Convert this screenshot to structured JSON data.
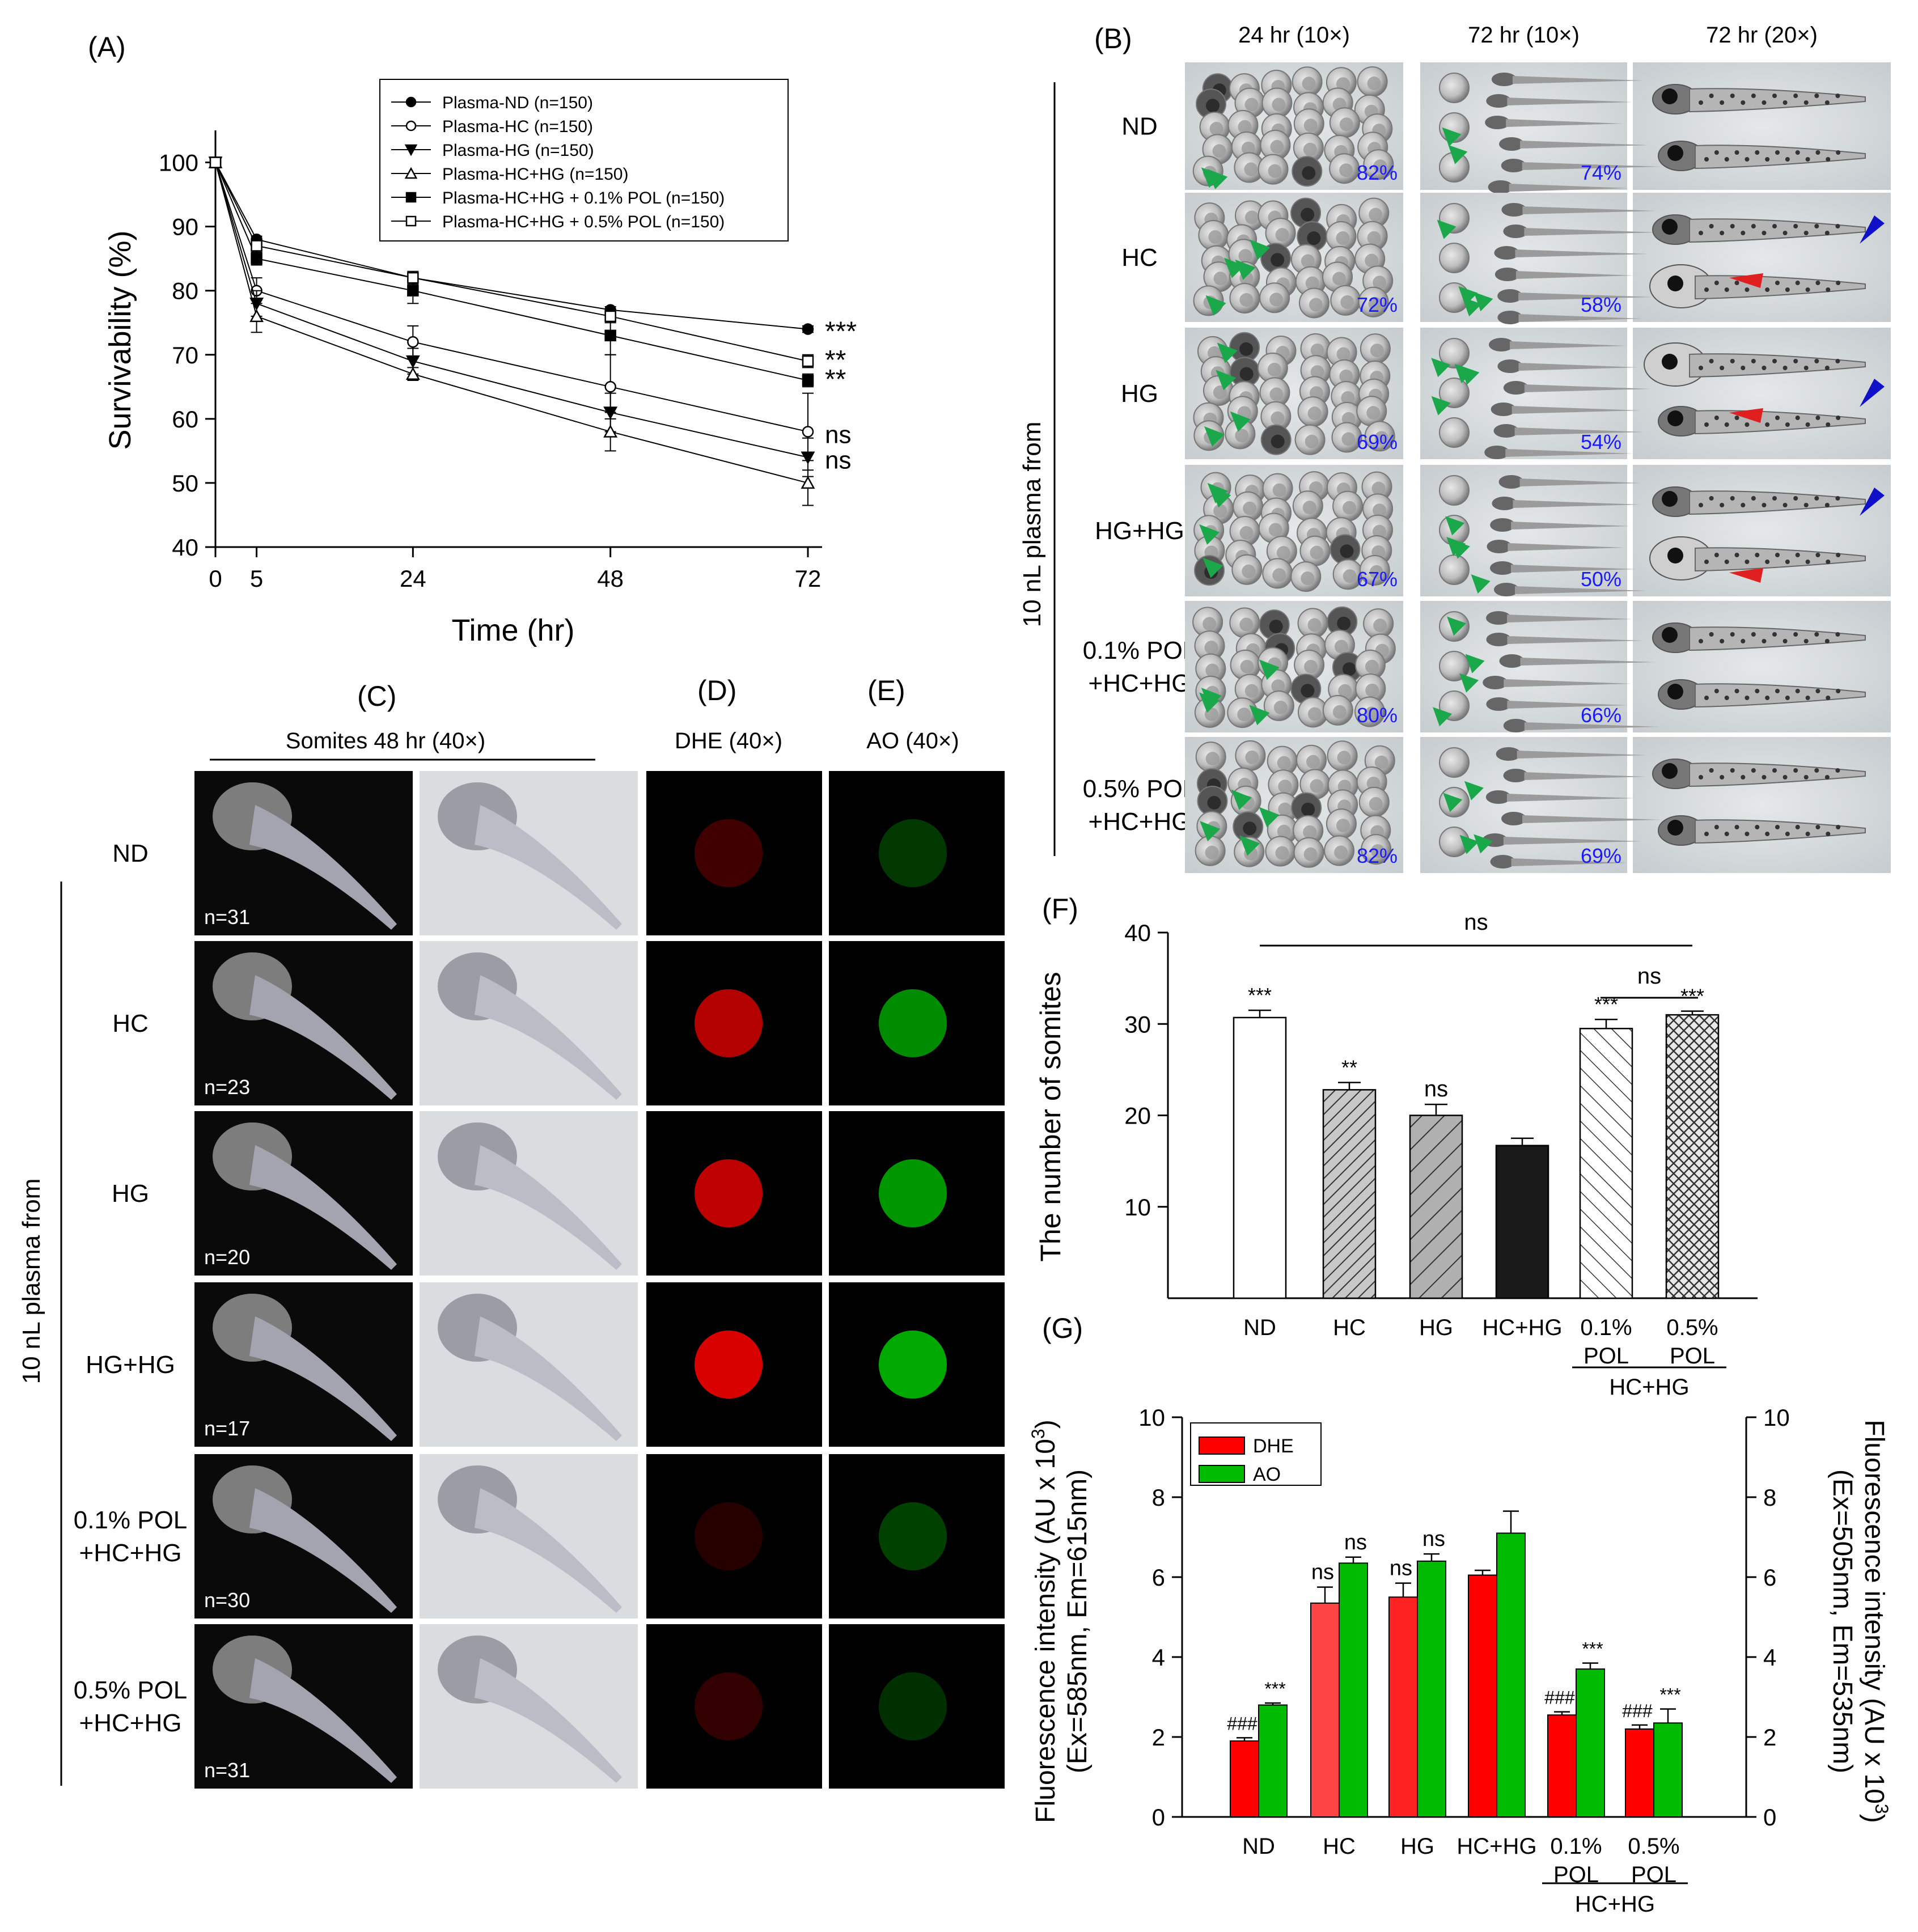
{
  "panels": {
    "A": "(A)",
    "B": "(B)",
    "C": "(C)",
    "D": "(D)",
    "E": "(E)",
    "F": "(F)",
    "G": "(G)"
  },
  "side_labels": {
    "b_group": "10 nL plasma from",
    "c_group": "10 nL plasma from"
  },
  "image_panel_B": {
    "columns": [
      "24 hr (10×)",
      "72 hr (10×)",
      "72 hr (20×)"
    ],
    "rows": [
      {
        "label_lines": [
          "ND"
        ],
        "pct24": "82%",
        "pct72": "74%"
      },
      {
        "label_lines": [
          "HC"
        ],
        "pct24": "72%",
        "pct72": "58%"
      },
      {
        "label_lines": [
          "HG"
        ],
        "pct24": "69%",
        "pct72": "54%"
      },
      {
        "label_lines": [
          "HG+HG"
        ],
        "pct24": "67%",
        "pct72": "50%"
      },
      {
        "label_lines": [
          "0.1% POL",
          "+HC+HG"
        ],
        "pct24": "80%",
        "pct72": "66%"
      },
      {
        "label_lines": [
          "0.5% POL",
          "+HC+HG"
        ],
        "pct24": "82%",
        "pct72": "69%"
      }
    ]
  },
  "image_panel_CDE": {
    "header_C": "Somites 48 hr (40×)",
    "header_D": "DHE (40×)",
    "header_E": "AO (40×)",
    "rows": [
      {
        "label_lines": [
          "ND"
        ],
        "n": "n=31",
        "dhe": 0.25,
        "ao": 0.3
      },
      {
        "label_lines": [
          "HC"
        ],
        "n": "n=23",
        "dhe": 0.7,
        "ao": 0.75
      },
      {
        "label_lines": [
          "HG"
        ],
        "n": "n=20",
        "dhe": 0.75,
        "ao": 0.8
      },
      {
        "label_lines": [
          "HG+HG"
        ],
        "n": "n=17",
        "dhe": 0.85,
        "ao": 0.9
      },
      {
        "label_lines": [
          "0.1% POL",
          "+HC+HG"
        ],
        "n": "n=30",
        "dhe": 0.15,
        "ao": 0.35
      },
      {
        "label_lines": [
          "0.5% POL",
          "+HC+HG"
        ],
        "n": "n=31",
        "dhe": 0.2,
        "ao": 0.25
      }
    ]
  },
  "colors": {
    "green_arrow": "#1aa84a",
    "blue_arrow": "#1010c8",
    "red_arrow": "#e02020",
    "pct_text": "#1a1aff",
    "dhe": "#ff0000",
    "ao": "#00bb00"
  },
  "chart_data": [
    {
      "id": "A",
      "type": "line",
      "xlabel": "Time (hr)",
      "ylabel": "Survivability (%)",
      "x": [
        0,
        5,
        24,
        48,
        72
      ],
      "xticks": [
        0,
        5,
        24,
        48,
        72
      ],
      "xlim": [
        0,
        72
      ],
      "ylim": [
        40,
        105
      ],
      "yticks": [
        40,
        50,
        60,
        70,
        80,
        90,
        100
      ],
      "legend_position": "top-right",
      "series": [
        {
          "name": "Plasma-ND (n=150)",
          "marker": "circle-filled",
          "values": [
            100,
            88,
            82,
            77,
            74
          ],
          "err": [
            0,
            0.5,
            0.5,
            0.5,
            0.5
          ],
          "sig": "***"
        },
        {
          "name": "Plasma-HC  (n=150)",
          "marker": "circle-open",
          "values": [
            100,
            80,
            72,
            65,
            58
          ],
          "err": [
            0,
            2,
            2.5,
            5,
            6
          ],
          "sig": "ns"
        },
        {
          "name": "Plasma-HG (n=150)",
          "marker": "triangle-down-filled",
          "values": [
            100,
            78,
            69,
            61,
            54
          ],
          "err": [
            0,
            2,
            2,
            3,
            3
          ],
          "sig": "ns"
        },
        {
          "name": "Plasma-HC+HG (n=150)",
          "marker": "triangle-up-open",
          "values": [
            100,
            76,
            67,
            58,
            50
          ],
          "err": [
            0,
            2.5,
            1,
            3,
            3.5
          ],
          "sig": ""
        },
        {
          "name": "Plasma-HC+HG + 0.1% POL (n=150)",
          "marker": "square-filled",
          "values": [
            100,
            85,
            80,
            73,
            66
          ],
          "err": [
            0,
            1,
            2,
            3,
            1
          ],
          "sig": "**"
        },
        {
          "name": "Plasma-HC+HG + 0.5% POL (n=150)",
          "marker": "square-open",
          "values": [
            100,
            87,
            82,
            76,
            69
          ],
          "err": [
            0,
            1,
            1,
            1,
            1
          ],
          "sig": "**"
        }
      ]
    },
    {
      "id": "F",
      "type": "bar",
      "ylabel": "The number of somites",
      "categories": [
        [
          "ND"
        ],
        [
          "HC"
        ],
        [
          "HG"
        ],
        [
          "HC+HG"
        ],
        [
          "0.1%",
          "POL"
        ],
        [
          "0.5%",
          "POL"
        ]
      ],
      "values": [
        30.7,
        22.8,
        20,
        16.7,
        29.5,
        31
      ],
      "err": [
        0.8,
        0.8,
        1.2,
        0.8,
        1,
        0.4
      ],
      "sig": [
        "***",
        "**",
        "ns",
        "",
        "***",
        "***"
      ],
      "patterns": [
        "white",
        "diag-dense",
        "diag-sparse",
        "black",
        "diag-back",
        "crosshatch"
      ],
      "ylim": [
        0,
        40
      ],
      "yticks": [
        10,
        20,
        30,
        40
      ],
      "brackets": [
        {
          "from": 0,
          "to": 5,
          "label": "ns"
        },
        {
          "from": 4,
          "to": 5,
          "label": "ns"
        }
      ],
      "group_label": {
        "from": 4,
        "to": 5,
        "text": "HC+HG"
      }
    },
    {
      "id": "G",
      "type": "bar",
      "ylabel_left_lines": [
        "Fluorescence intensity (AU x 10",
        "(Ex=585nm, Em=615nm)"
      ],
      "ylabel_right_lines": [
        "Fluorescence intensity (AU x 10",
        "(Ex=505nm, Em=535nm)"
      ],
      "ylabel_sup": "3",
      "ylabel_close": ")",
      "categories": [
        [
          "ND"
        ],
        [
          "HC"
        ],
        [
          "HG"
        ],
        [
          "HC+HG"
        ],
        [
          "0.1%",
          "POL"
        ],
        [
          "0.5%",
          "POL"
        ]
      ],
      "ylim": [
        0,
        10
      ],
      "yticks": [
        0,
        2,
        4,
        6,
        8,
        10
      ],
      "legend_position": "top-left",
      "series": [
        {
          "name": "DHE",
          "values": [
            1.9,
            5.35,
            5.5,
            6.05,
            2.55,
            2.2
          ],
          "err": [
            0.08,
            0.4,
            0.35,
            0.12,
            0.08,
            0.1
          ],
          "sig": [
            "###",
            "ns",
            "ns",
            "",
            "###",
            "###"
          ]
        },
        {
          "name": "AO",
          "values": [
            2.8,
            6.35,
            6.4,
            7.1,
            3.7,
            2.35
          ],
          "err": [
            0.05,
            0.15,
            0.18,
            0.55,
            0.15,
            0.35
          ],
          "sig": [
            "***",
            "ns",
            "ns",
            "",
            "***",
            "***"
          ]
        }
      ],
      "group_label": {
        "from": 4,
        "to": 5,
        "text": "HC+HG"
      }
    }
  ]
}
